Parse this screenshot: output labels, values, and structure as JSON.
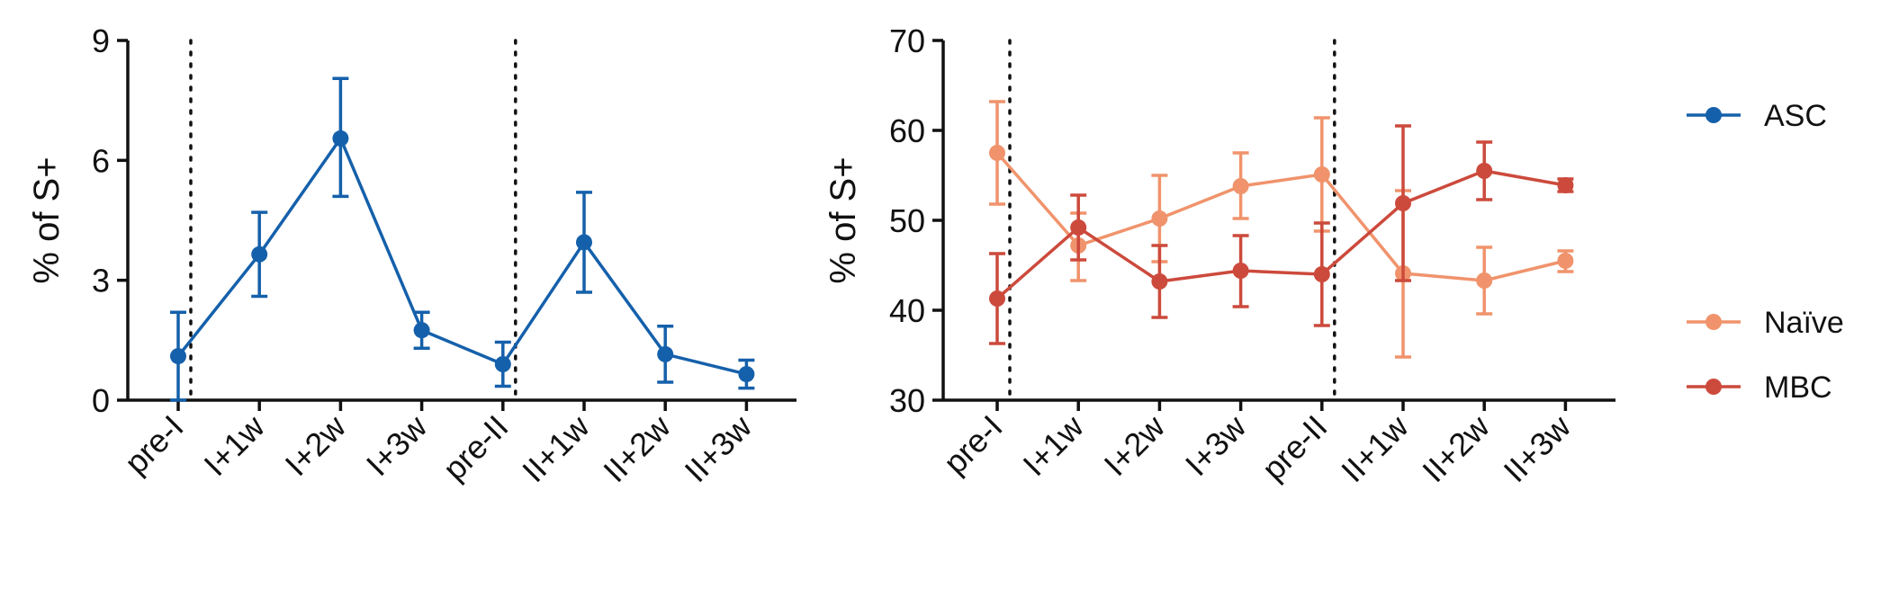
{
  "chart_data": [
    {
      "type": "line",
      "categories": [
        "pre-I",
        "I+1w",
        "I+2w",
        "I+3w",
        "pre-II",
        "II+1w",
        "II+2w",
        "II+3w"
      ],
      "ylabel": "% of S+",
      "xlabel": "",
      "ylim": [
        0,
        9
      ],
      "yticks": [
        0,
        3,
        6,
        9
      ],
      "vlines_after": [
        "pre-I",
        "pre-II"
      ],
      "series": [
        {
          "name": "ASC",
          "color": "#1560ab",
          "values": [
            1.1,
            3.65,
            6.55,
            1.75,
            0.9,
            3.95,
            1.15,
            0.65
          ],
          "err_low": [
            0.0,
            2.6,
            5.1,
            1.3,
            0.35,
            2.7,
            0.45,
            0.3
          ],
          "err_high": [
            2.2,
            4.7,
            8.05,
            2.2,
            1.45,
            5.2,
            1.85,
            1.0
          ]
        }
      ]
    },
    {
      "type": "line",
      "categories": [
        "pre-I",
        "I+1w",
        "I+2w",
        "I+3w",
        "pre-II",
        "II+1w",
        "II+2w",
        "II+3w"
      ],
      "ylabel": "% of S+",
      "xlabel": "",
      "ylim": [
        30,
        70
      ],
      "yticks": [
        30,
        40,
        50,
        60,
        70
      ],
      "vlines_after": [
        "pre-I",
        "pre-II"
      ],
      "series": [
        {
          "name": "Naïve",
          "color": "#f0936c",
          "values": [
            57.5,
            47.2,
            50.2,
            53.8,
            55.1,
            44.1,
            43.3,
            45.5
          ],
          "err_low": [
            51.8,
            43.3,
            45.4,
            50.2,
            48.8,
            34.8,
            39.6,
            44.3
          ],
          "err_high": [
            63.2,
            50.8,
            55.0,
            57.5,
            61.4,
            53.3,
            47.0,
            46.6
          ]
        },
        {
          "name": "MBC",
          "color": "#cc4a3c",
          "values": [
            41.3,
            49.2,
            43.2,
            44.4,
            44.0,
            51.9,
            55.5,
            53.9
          ],
          "err_low": [
            36.3,
            45.6,
            39.2,
            40.4,
            38.3,
            43.3,
            52.3,
            53.2
          ],
          "err_high": [
            46.3,
            52.8,
            47.2,
            48.3,
            49.7,
            60.5,
            58.7,
            54.6
          ]
        }
      ]
    }
  ],
  "legend": [
    {
      "name": "ASC",
      "color": "#1560ab"
    },
    {
      "name": "Naïve",
      "color": "#f0936c"
    },
    {
      "name": "MBC",
      "color": "#cc4a3c"
    }
  ]
}
